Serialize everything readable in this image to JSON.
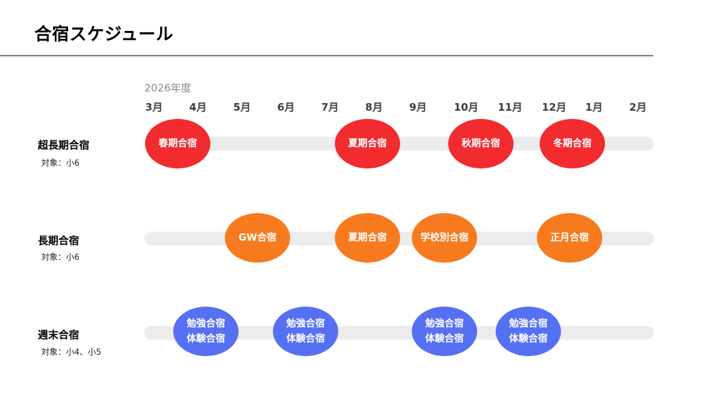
{
  "page": {
    "title": "合宿スケジュール",
    "fiscal_year": "2026年度"
  },
  "months": [
    "3月",
    "4月",
    "5月",
    "6月",
    "7月",
    "8月",
    "9月",
    "10月",
    "11月",
    "12月",
    "1月",
    "2月"
  ],
  "colors": {
    "super_long_camp": "#f22b2f",
    "long_camp": "#f77b1e",
    "weekend_camp": "#5670f3",
    "track": "#ececec"
  },
  "rows": [
    {
      "title": "超長期合宿",
      "target": "対象：小6",
      "events": [
        {
          "label": "春期合宿",
          "month": "3月"
        },
        {
          "label": "夏期合宿",
          "month": "8月"
        },
        {
          "label": "秋期合宿",
          "month": "10月"
        },
        {
          "label": "冬期合宿",
          "month": "12月"
        }
      ]
    },
    {
      "title": "長期合宿",
      "target": "対象：小6",
      "events": [
        {
          "label": "GW合宿",
          "month": "5月"
        },
        {
          "label": "夏期合宿",
          "month": "8月"
        },
        {
          "label": "学校別合宿",
          "month": "9月"
        },
        {
          "label": "正月合宿",
          "month": "12月"
        }
      ]
    },
    {
      "title": "週末合宿",
      "target": "対象：小4、小5",
      "events": [
        {
          "label": "勉強合宿\n体験合宿",
          "month": "4月"
        },
        {
          "label": "勉強合宿\n体験合宿",
          "month": "6月"
        },
        {
          "label": "勉強合宿\n体験合宿",
          "month": "9月"
        },
        {
          "label": "勉強合宿\n体験合宿",
          "month": "11月"
        }
      ]
    }
  ]
}
